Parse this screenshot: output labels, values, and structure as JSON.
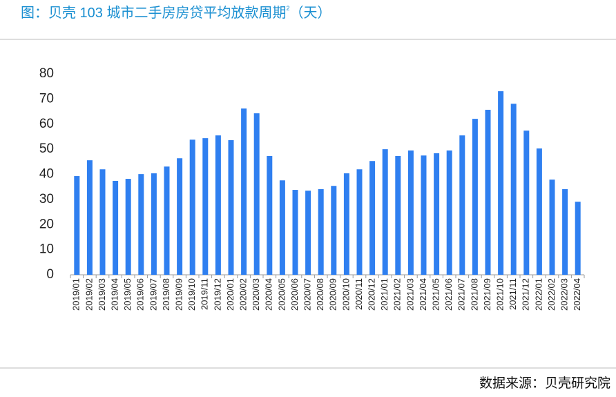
{
  "chart_data": {
    "type": "bar",
    "title": "图：贝壳 103 城市二手房房贷平均放款周期",
    "title_superscript": "2",
    "title_suffix": "（天）",
    "source": "数据来源：贝壳研究院",
    "categories": [
      "2019/01",
      "2019/02",
      "2019/03",
      "2019/04",
      "2019/05",
      "2019/06",
      "2019/07",
      "2019/08",
      "2019/09",
      "2019/10",
      "2019/11",
      "2019/12",
      "2020/01",
      "2020/02",
      "2020/03",
      "2020/04",
      "2020/05",
      "2020/06",
      "2020/07",
      "2020/08",
      "2020/09",
      "2020/10",
      "2020/11",
      "2020/12",
      "2021/01",
      "2021/02",
      "2021/03",
      "2021/04",
      "2021/05",
      "2021/06",
      "2021/07",
      "2021/08",
      "2021/09",
      "2021/10",
      "2021/11",
      "2021/12",
      "2022/01",
      "2022/02",
      "2022/03",
      "2022/04"
    ],
    "values": [
      39.3,
      45.6,
      42,
      37.4,
      38.2,
      40.1,
      40.4,
      43.1,
      46.4,
      53.8,
      54.4,
      55.5,
      53.6,
      66.2,
      64.3,
      47.3,
      37.6,
      33.8,
      33.5,
      34.1,
      35.4,
      40.4,
      42,
      45.3,
      50,
      47.3,
      49.5,
      47.5,
      48.4,
      49.5,
      55.5,
      62.1,
      65.7,
      73.1,
      68.1,
      57.4,
      50.3,
      37.9,
      34.1,
      29.1
    ],
    "color": "#2f7ff0",
    "ylim": [
      0,
      80
    ],
    "yticks": [
      0,
      10,
      20,
      30,
      40,
      50,
      60,
      70,
      80
    ],
    "grid": false
  }
}
